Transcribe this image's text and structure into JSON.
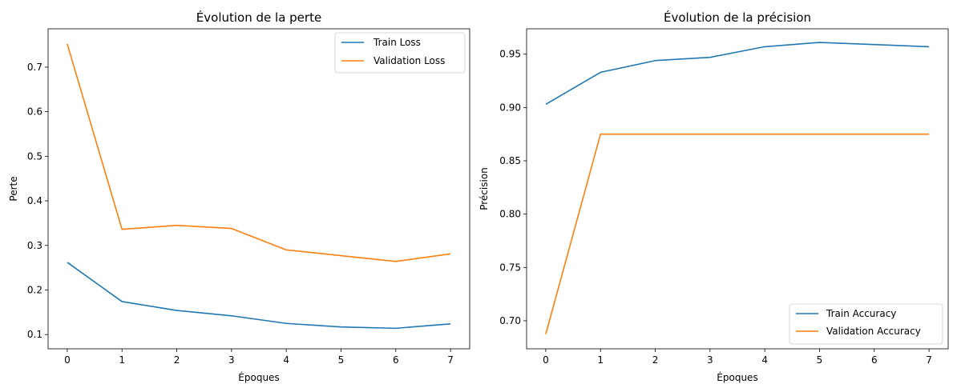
{
  "chart_data": [
    {
      "type": "line",
      "title": "Évolution de la perte",
      "xlabel": "Époques",
      "ylabel": "Perte",
      "x": [
        0,
        1,
        2,
        3,
        4,
        5,
        6,
        7
      ],
      "xticks": [
        "0",
        "1",
        "2",
        "3",
        "4",
        "5",
        "6",
        "7"
      ],
      "yticks": [
        "0.1",
        "0.2",
        "0.3",
        "0.4",
        "0.5",
        "0.6",
        "0.7"
      ],
      "xlim": [
        -0.35,
        7.35
      ],
      "ylim": [
        0.068,
        0.786
      ],
      "legend_position": "top-right",
      "grid": false,
      "series": [
        {
          "name": "Train Loss",
          "color": "#1f77b4",
          "values": [
            0.262,
            0.174,
            0.154,
            0.142,
            0.125,
            0.117,
            0.114,
            0.124
          ]
        },
        {
          "name": "Validation Loss",
          "color": "#ff7f0e",
          "values": [
            0.752,
            0.336,
            0.345,
            0.338,
            0.29,
            0.277,
            0.264,
            0.281
          ]
        }
      ]
    },
    {
      "type": "line",
      "title": "Évolution de la précision",
      "xlabel": "Époques",
      "ylabel": "Précision",
      "x": [
        0,
        1,
        2,
        3,
        4,
        5,
        6,
        7
      ],
      "xticks": [
        "0",
        "1",
        "2",
        "3",
        "4",
        "5",
        "6",
        "7"
      ],
      "yticks": [
        "0.70",
        "0.75",
        "0.80",
        "0.85",
        "0.90",
        "0.95"
      ],
      "xlim": [
        -0.35,
        7.35
      ],
      "ylim": [
        0.6737,
        0.9738
      ],
      "legend_position": "bottom-right",
      "grid": false,
      "series": [
        {
          "name": "Train Accuracy",
          "color": "#1f77b4",
          "values": [
            0.903,
            0.933,
            0.944,
            0.947,
            0.957,
            0.961,
            0.959,
            0.957
          ]
        },
        {
          "name": "Validation Accuracy",
          "color": "#ff7f0e",
          "values": [
            0.6875,
            0.875,
            0.875,
            0.875,
            0.875,
            0.875,
            0.875,
            0.875
          ]
        }
      ]
    }
  ]
}
